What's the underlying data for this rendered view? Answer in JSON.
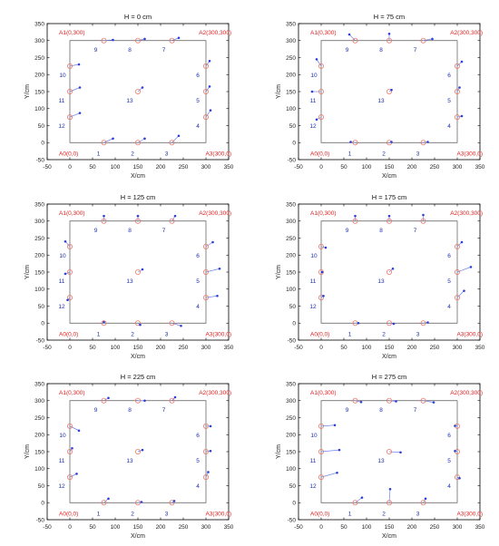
{
  "figure": {
    "xlabel": "X/cm",
    "ylabel": "Y/cm",
    "xlim": [
      -50,
      350
    ],
    "ylim": [
      -50,
      350
    ],
    "xticks": [
      -50,
      0,
      50,
      100,
      150,
      200,
      250,
      300,
      350
    ],
    "yticks": [
      -50,
      0,
      50,
      100,
      150,
      200,
      250,
      300,
      350
    ],
    "corners": [
      {
        "label": "A0(0,0)",
        "x": 0,
        "y": 0
      },
      {
        "label": "A1(0,300)",
        "x": 0,
        "y": 300
      },
      {
        "label": "A2(300,300)",
        "x": 300,
        "y": 300
      },
      {
        "label": "A3(300,0)",
        "x": 300,
        "y": 0
      }
    ],
    "colors": {
      "true_marker": "#e87a6d",
      "estimate": "#2b3fd6",
      "corner_label": "#e02020",
      "frame": "#555555"
    }
  },
  "chart_data": [
    {
      "type": "scatter",
      "title": "H = 0 cm",
      "points": [
        {
          "id": "1",
          "true": [
            75,
            0
          ],
          "est": [
            95,
            12
          ]
        },
        {
          "id": "2",
          "true": [
            150,
            0
          ],
          "est": [
            165,
            12
          ]
        },
        {
          "id": "3",
          "true": [
            225,
            0
          ],
          "est": [
            240,
            20
          ]
        },
        {
          "id": "4",
          "true": [
            300,
            75
          ],
          "est": [
            310,
            95
          ]
        },
        {
          "id": "5",
          "true": [
            300,
            150
          ],
          "est": [
            308,
            165
          ]
        },
        {
          "id": "6",
          "true": [
            300,
            225
          ],
          "est": [
            308,
            240
          ]
        },
        {
          "id": "7",
          "true": [
            225,
            300
          ],
          "est": [
            240,
            308
          ]
        },
        {
          "id": "8",
          "true": [
            150,
            300
          ],
          "est": [
            165,
            305
          ]
        },
        {
          "id": "9",
          "true": [
            75,
            300
          ],
          "est": [
            95,
            302
          ]
        },
        {
          "id": "10",
          "true": [
            0,
            225
          ],
          "est": [
            20,
            230
          ]
        },
        {
          "id": "11",
          "true": [
            0,
            150
          ],
          "est": [
            22,
            162
          ]
        },
        {
          "id": "12",
          "true": [
            0,
            75
          ],
          "est": [
            22,
            87
          ]
        },
        {
          "id": "13",
          "true": [
            150,
            150
          ],
          "est": [
            160,
            162
          ]
        }
      ]
    },
    {
      "type": "scatter",
      "title": "H = 75 cm",
      "points": [
        {
          "id": "1",
          "true": [
            75,
            0
          ],
          "est": [
            65,
            2
          ]
        },
        {
          "id": "2",
          "true": [
            150,
            0
          ],
          "est": [
            155,
            2
          ]
        },
        {
          "id": "3",
          "true": [
            225,
            0
          ],
          "est": [
            235,
            2
          ]
        },
        {
          "id": "4",
          "true": [
            300,
            75
          ],
          "est": [
            310,
            78
          ]
        },
        {
          "id": "5",
          "true": [
            300,
            150
          ],
          "est": [
            305,
            162
          ]
        },
        {
          "id": "6",
          "true": [
            300,
            225
          ],
          "est": [
            310,
            238
          ]
        },
        {
          "id": "7",
          "true": [
            225,
            300
          ],
          "est": [
            245,
            305
          ]
        },
        {
          "id": "8",
          "true": [
            150,
            300
          ],
          "est": [
            150,
            320
          ]
        },
        {
          "id": "9",
          "true": [
            75,
            300
          ],
          "est": [
            62,
            318
          ]
        },
        {
          "id": "10",
          "true": [
            0,
            225
          ],
          "est": [
            -10,
            245
          ]
        },
        {
          "id": "11",
          "true": [
            0,
            150
          ],
          "est": [
            -20,
            150
          ]
        },
        {
          "id": "12",
          "true": [
            0,
            75
          ],
          "est": [
            -10,
            68
          ]
        },
        {
          "id": "13",
          "true": [
            150,
            150
          ],
          "est": [
            155,
            155
          ]
        }
      ]
    },
    {
      "type": "scatter",
      "title": "H = 125 cm",
      "points": [
        {
          "id": "1",
          "true": [
            75,
            0
          ],
          "est": [
            75,
            3
          ]
        },
        {
          "id": "2",
          "true": [
            150,
            0
          ],
          "est": [
            155,
            -5
          ]
        },
        {
          "id": "3",
          "true": [
            225,
            0
          ],
          "est": [
            245,
            -8
          ]
        },
        {
          "id": "4",
          "true": [
            300,
            75
          ],
          "est": [
            325,
            80
          ]
        },
        {
          "id": "5",
          "true": [
            300,
            150
          ],
          "est": [
            330,
            160
          ]
        },
        {
          "id": "6",
          "true": [
            300,
            225
          ],
          "est": [
            315,
            238
          ]
        },
        {
          "id": "7",
          "true": [
            225,
            300
          ],
          "est": [
            232,
            315
          ]
        },
        {
          "id": "8",
          "true": [
            150,
            300
          ],
          "est": [
            150,
            315
          ]
        },
        {
          "id": "9",
          "true": [
            75,
            300
          ],
          "est": [
            75,
            315
          ]
        },
        {
          "id": "10",
          "true": [
            0,
            225
          ],
          "est": [
            -10,
            240
          ]
        },
        {
          "id": "11",
          "true": [
            0,
            150
          ],
          "est": [
            -10,
            145
          ]
        },
        {
          "id": "12",
          "true": [
            0,
            75
          ],
          "est": [
            -5,
            68
          ]
        },
        {
          "id": "13",
          "true": [
            150,
            150
          ],
          "est": [
            160,
            158
          ]
        }
      ]
    },
    {
      "type": "scatter",
      "title": "H = 175 cm",
      "points": [
        {
          "id": "1",
          "true": [
            75,
            0
          ],
          "est": [
            82,
            0
          ]
        },
        {
          "id": "2",
          "true": [
            150,
            0
          ],
          "est": [
            160,
            -2
          ]
        },
        {
          "id": "3",
          "true": [
            225,
            0
          ],
          "est": [
            235,
            2
          ]
        },
        {
          "id": "4",
          "true": [
            300,
            75
          ],
          "est": [
            315,
            95
          ]
        },
        {
          "id": "5",
          "true": [
            300,
            150
          ],
          "est": [
            330,
            165
          ]
        },
        {
          "id": "6",
          "true": [
            300,
            225
          ],
          "est": [
            310,
            238
          ]
        },
        {
          "id": "7",
          "true": [
            225,
            300
          ],
          "est": [
            225,
            318
          ]
        },
        {
          "id": "8",
          "true": [
            150,
            300
          ],
          "est": [
            150,
            315
          ]
        },
        {
          "id": "9",
          "true": [
            75,
            300
          ],
          "est": [
            75,
            315
          ]
        },
        {
          "id": "10",
          "true": [
            0,
            225
          ],
          "est": [
            10,
            222
          ]
        },
        {
          "id": "11",
          "true": [
            0,
            150
          ],
          "est": [
            2,
            150
          ]
        },
        {
          "id": "12",
          "true": [
            0,
            75
          ],
          "est": [
            5,
            80
          ]
        },
        {
          "id": "13",
          "true": [
            150,
            150
          ],
          "est": [
            158,
            160
          ]
        }
      ]
    },
    {
      "type": "scatter",
      "title": "H = 225 cm",
      "points": [
        {
          "id": "1",
          "true": [
            75,
            0
          ],
          "est": [
            85,
            12
          ]
        },
        {
          "id": "2",
          "true": [
            150,
            0
          ],
          "est": [
            158,
            2
          ]
        },
        {
          "id": "3",
          "true": [
            225,
            0
          ],
          "est": [
            230,
            5
          ]
        },
        {
          "id": "4",
          "true": [
            300,
            75
          ],
          "est": [
            305,
            90
          ]
        },
        {
          "id": "5",
          "true": [
            300,
            150
          ],
          "est": [
            310,
            152
          ]
        },
        {
          "id": "6",
          "true": [
            300,
            225
          ],
          "est": [
            310,
            225
          ]
        },
        {
          "id": "7",
          "true": [
            225,
            300
          ],
          "est": [
            232,
            310
          ]
        },
        {
          "id": "8",
          "true": [
            150,
            300
          ],
          "est": [
            165,
            300
          ]
        },
        {
          "id": "9",
          "true": [
            75,
            300
          ],
          "est": [
            85,
            308
          ]
        },
        {
          "id": "10",
          "true": [
            0,
            225
          ],
          "est": [
            20,
            212
          ]
        },
        {
          "id": "11",
          "true": [
            0,
            150
          ],
          "est": [
            5,
            160
          ]
        },
        {
          "id": "12",
          "true": [
            0,
            75
          ],
          "est": [
            15,
            85
          ]
        },
        {
          "id": "13",
          "true": [
            150,
            150
          ],
          "est": [
            160,
            155
          ]
        }
      ]
    },
    {
      "type": "scatter",
      "title": "H = 275 cm",
      "points": [
        {
          "id": "1",
          "true": [
            75,
            0
          ],
          "est": [
            90,
            15
          ]
        },
        {
          "id": "2",
          "true": [
            150,
            0
          ],
          "est": [
            152,
            40
          ]
        },
        {
          "id": "3",
          "true": [
            225,
            0
          ],
          "est": [
            230,
            12
          ]
        },
        {
          "id": "4",
          "true": [
            300,
            75
          ],
          "est": [
            305,
            72
          ]
        },
        {
          "id": "5",
          "true": [
            300,
            150
          ],
          "est": [
            295,
            152
          ]
        },
        {
          "id": "6",
          "true": [
            300,
            225
          ],
          "est": [
            295,
            226
          ]
        },
        {
          "id": "7",
          "true": [
            225,
            300
          ],
          "est": [
            248,
            295
          ]
        },
        {
          "id": "8",
          "true": [
            150,
            300
          ],
          "est": [
            165,
            298
          ]
        },
        {
          "id": "9",
          "true": [
            75,
            300
          ],
          "est": [
            88,
            296
          ]
        },
        {
          "id": "10",
          "true": [
            0,
            225
          ],
          "est": [
            30,
            228
          ]
        },
        {
          "id": "11",
          "true": [
            0,
            150
          ],
          "est": [
            40,
            155
          ]
        },
        {
          "id": "12",
          "true": [
            0,
            75
          ],
          "est": [
            35,
            88
          ]
        },
        {
          "id": "13",
          "true": [
            150,
            150
          ],
          "est": [
            175,
            148
          ]
        }
      ]
    }
  ]
}
